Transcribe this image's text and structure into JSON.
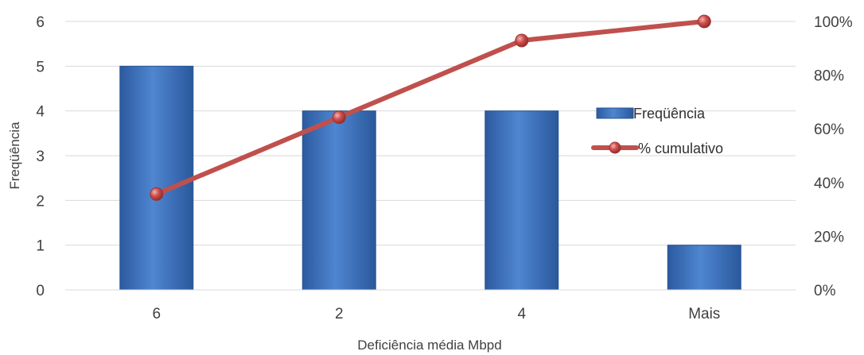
{
  "chart_data": {
    "type": "bar",
    "categories": [
      "6",
      "2",
      "4",
      "Mais"
    ],
    "series": [
      {
        "name": "Freqüência",
        "type": "bar",
        "axis": "left",
        "values": [
          5,
          4,
          4,
          1
        ],
        "color": "#3a6db5"
      },
      {
        "name": "% cumulativo",
        "type": "line",
        "axis": "right",
        "values": [
          35.7,
          64.3,
          92.9,
          100
        ],
        "color": "#c0504d"
      }
    ],
    "xlabel": "Deficiência média Mbpd",
    "ylabel": "Freqüência",
    "ylim": [
      0,
      6
    ],
    "yticks": [
      "0",
      "1",
      "2",
      "3",
      "4",
      "5",
      "6"
    ],
    "y2lim": [
      0,
      100
    ],
    "y2ticks": [
      "0%",
      "20%",
      "40%",
      "60%",
      "80%",
      "100%"
    ],
    "grid": true,
    "legend": "right",
    "legend_items": [
      "Freqüência",
      "% cumulativo"
    ]
  }
}
